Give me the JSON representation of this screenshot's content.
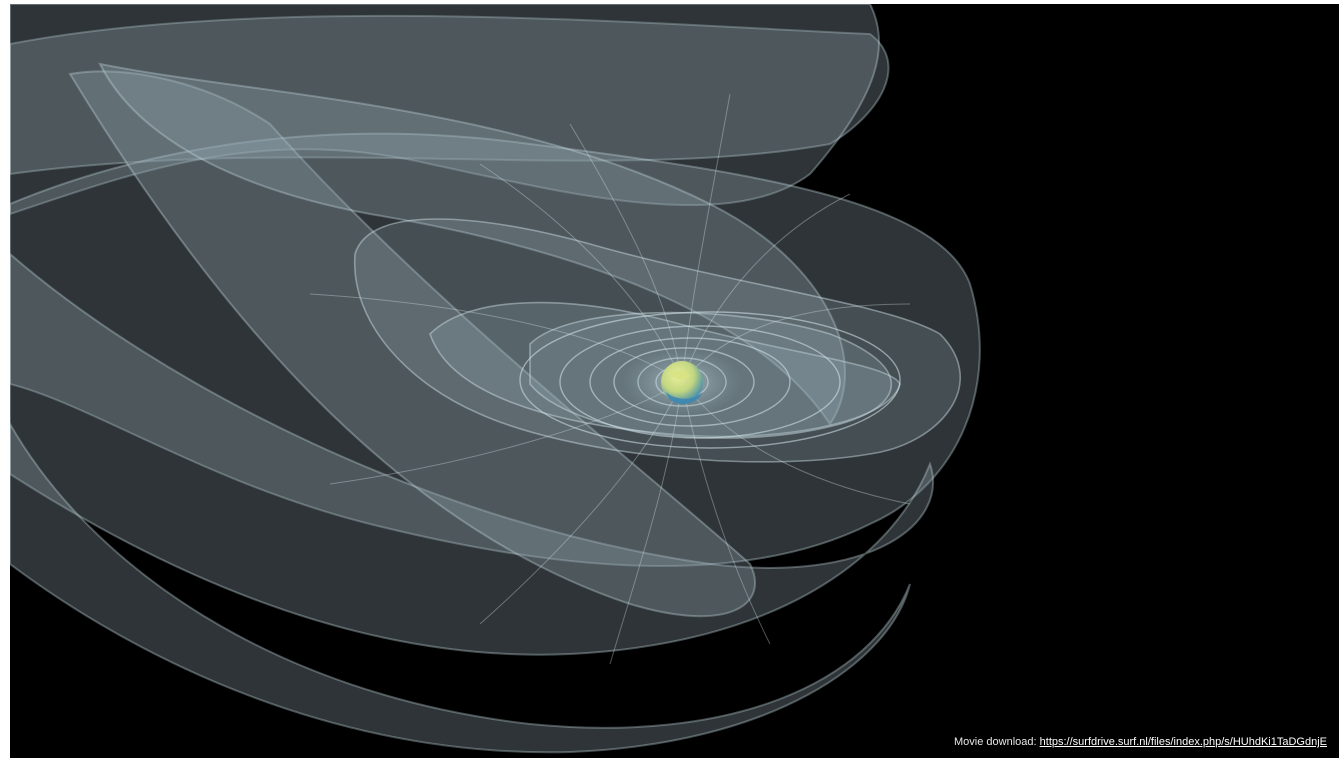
{
  "caption": {
    "label": "Movie download:",
    "link_text": "https://surfdrive.surf.nl/files/index.php/s/HUhdKi1TaDGdnjE"
  },
  "scene": {
    "subject": "earth-icon",
    "field_line_color": "#a9c6d1",
    "sheet_color": "#7f949c",
    "background": "#000000"
  }
}
